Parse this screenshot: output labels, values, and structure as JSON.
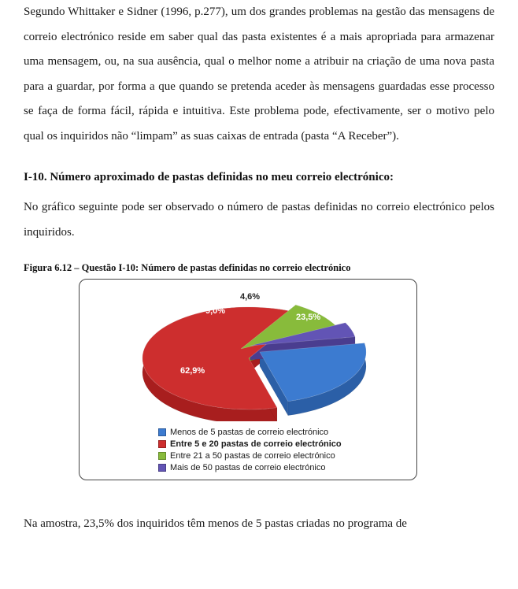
{
  "paragraph1": "Segundo Whittaker e Sidner (1996, p.277), um dos grandes problemas na gestão das mensagens de correio electrónico reside em saber qual das pasta existentes é a mais apropriada para armazenar uma mensagem, ou, na sua ausência, qual o melhor nome a atribuir na criação de uma nova pasta para a guardar, por forma a que quando se pretenda aceder às mensagens guardadas esse processo se faça de forma fácil, rápida e intuitiva. Este problema pode, efectivamente, ser o motivo pelo qual os inquiridos não “limpam” as suas caixas de entrada (pasta “A Receber”).",
  "heading": "I-10. Número aproximado de pastas definidas no meu correio electrónico:",
  "paragraph2": "No gráfico seguinte pode ser observado o número de pastas definidas no correio electrónico pelos inquiridos.",
  "figure_caption": "Figura 6.12 – Questão I-10: Número de pastas definidas no correio electrónico",
  "paragraph3": "Na amostra, 23,5% dos inquiridos têm menos de 5 pastas criadas no programa de",
  "chart": {
    "type": "pie",
    "slices": [
      {
        "label": "Menos de 5 pastas de correio electrónico",
        "value": 23.5,
        "display": "23,5%",
        "color": "#2b5fa7",
        "color_top": "#3c7bd0",
        "bold": false
      },
      {
        "label": "Entre 5 e 20 pastas de correio electrónico",
        "value": 62.9,
        "display": "62,9%",
        "color": "#a81e1e",
        "color_top": "#cd2e2e",
        "bold": true
      },
      {
        "label": "Entre 21 a 50 pastas de correio electrónico",
        "value": 9.0,
        "display": "9,0%",
        "color": "#6d9a2e",
        "color_top": "#88bb3b",
        "bold": false
      },
      {
        "label": "Mais de 50 pastas de correio electrónico",
        "value": 4.6,
        "display": "4,6%",
        "color": "#4a3d8f",
        "color_top": "#6254b5",
        "bold": false
      }
    ],
    "background_color": "#ffffff",
    "label_text_color": "#ffffff",
    "legend_fontsize": 11
  }
}
